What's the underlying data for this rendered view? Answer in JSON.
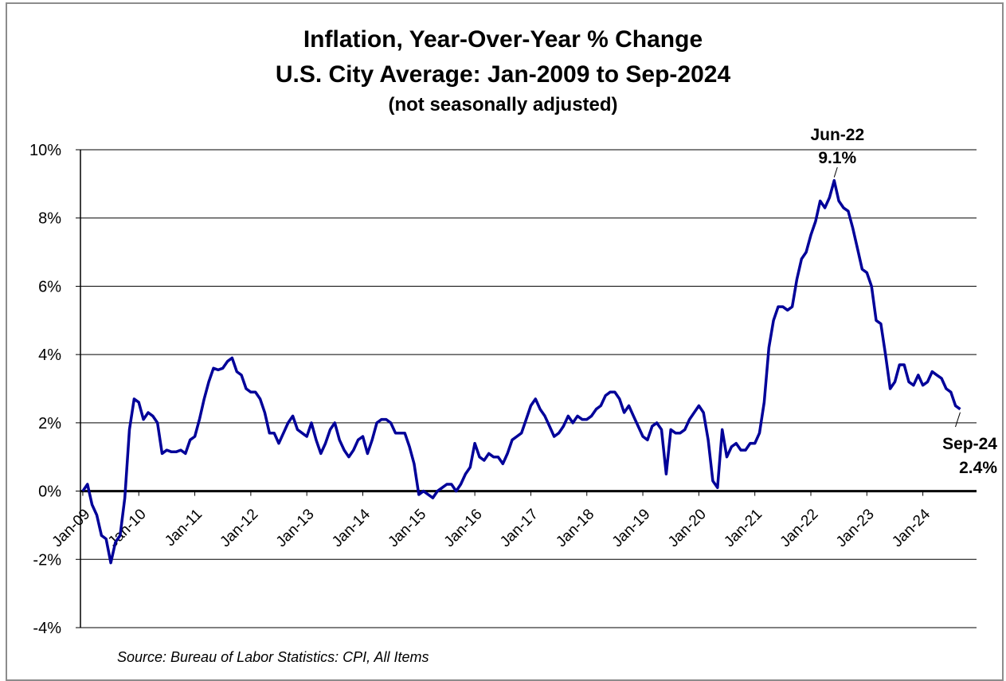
{
  "chart_data": {
    "type": "line",
    "title_line1": "Inflation, Year-Over-Year % Change",
    "title_line2": "U.S. City Average: Jan-2009 to Sep-2024",
    "subtitle": "(not seasonally adjusted)",
    "source": "Source: Bureau of Labor Statistics: CPI, All Items",
    "ylim": [
      -4,
      10
    ],
    "y_ticks": [
      10,
      8,
      6,
      4,
      2,
      0,
      -2,
      -4
    ],
    "y_tick_labels": [
      "10%",
      "8%",
      "6%",
      "4%",
      "2%",
      "0%",
      "-2%",
      "-4%"
    ],
    "x_tick_labels": [
      "Jan-09",
      "Jan-10",
      "Jan-11",
      "Jan-12",
      "Jan-13",
      "Jan-14",
      "Jan-15",
      "Jan-16",
      "Jan-17",
      "Jan-18",
      "Jan-19",
      "Jan-20",
      "Jan-21",
      "Jan-22",
      "Jan-23",
      "Jan-24"
    ],
    "x_start": "Jan-09",
    "x_end": "Sep-24",
    "line_color": "#000099",
    "grid": "horizontal",
    "series": [
      {
        "values": [
          0.0,
          0.2,
          -0.4,
          -0.7,
          -1.3,
          -1.4,
          -2.1,
          -1.5,
          -1.3,
          -0.2,
          1.8,
          2.7,
          2.6,
          2.1,
          2.3,
          2.2,
          2.0,
          1.1,
          1.2,
          1.15,
          1.15,
          1.2,
          1.1,
          1.5,
          1.6,
          2.1,
          2.7,
          3.2,
          3.6,
          3.55,
          3.6,
          3.8,
          3.9,
          3.5,
          3.4,
          3.0,
          2.9,
          2.9,
          2.7,
          2.3,
          1.7,
          1.7,
          1.4,
          1.7,
          2.0,
          2.2,
          1.8,
          1.7,
          1.6,
          2.0,
          1.5,
          1.1,
          1.4,
          1.8,
          2.0,
          1.5,
          1.2,
          1.0,
          1.2,
          1.5,
          1.6,
          1.1,
          1.5,
          2.0,
          2.1,
          2.1,
          2.0,
          1.7,
          1.7,
          1.7,
          1.3,
          0.8,
          -0.1,
          0.0,
          -0.1,
          -0.2,
          0.0,
          0.1,
          0.2,
          0.2,
          0.0,
          0.2,
          0.5,
          0.7,
          1.4,
          1.0,
          0.9,
          1.1,
          1.0,
          1.0,
          0.8,
          1.1,
          1.5,
          1.6,
          1.7,
          2.1,
          2.5,
          2.7,
          2.4,
          2.2,
          1.9,
          1.6,
          1.7,
          1.9,
          2.2,
          2.0,
          2.2,
          2.1,
          2.1,
          2.2,
          2.4,
          2.5,
          2.8,
          2.9,
          2.9,
          2.7,
          2.3,
          2.5,
          2.2,
          1.9,
          1.6,
          1.5,
          1.9,
          2.0,
          1.8,
          0.5,
          1.8,
          1.7,
          1.7,
          1.8,
          2.1,
          2.3,
          2.5,
          2.3,
          1.5,
          0.3,
          0.1,
          1.8,
          1.0,
          1.3,
          1.4,
          1.2,
          1.2,
          1.4,
          1.4,
          1.7,
          2.6,
          4.2,
          5.0,
          5.4,
          5.4,
          5.3,
          5.4,
          6.2,
          6.8,
          7.0,
          7.5,
          7.9,
          8.5,
          8.3,
          8.6,
          9.1,
          8.5,
          8.3,
          8.2,
          7.7,
          7.1,
          6.5,
          6.4,
          6.0,
          5.0,
          4.9,
          4.0,
          3.0,
          3.2,
          3.7,
          3.7,
          3.2,
          3.1,
          3.4,
          3.1,
          3.2,
          3.5,
          3.4,
          3.3,
          3.0,
          2.9,
          2.5,
          2.4
        ]
      }
    ],
    "annotations": [
      {
        "label": "Jun-22",
        "value_label": "9.1%",
        "index": 161
      },
      {
        "label": "Sep-24",
        "value_label": "2.4%",
        "index": 188
      }
    ]
  }
}
